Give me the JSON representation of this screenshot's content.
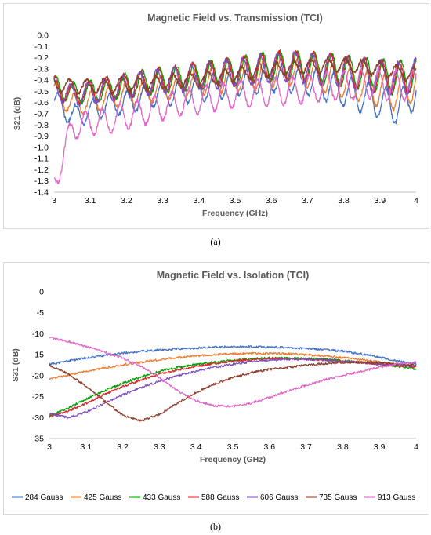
{
  "figure": {
    "label_a": "(a)",
    "label_b": "(b)"
  },
  "colors": {
    "284 Gauss": "#4472c4",
    "425 Gauss": "#ed7d31",
    "433 Gauss": "#00a000",
    "588 Gauss": "#d9262c",
    "606 Gauss": "#7b4fc2",
    "735 Gauss": "#8b3f2c",
    "913 Gauss": "#e066c8"
  },
  "chart_data": [
    {
      "type": "line",
      "title": "Magnetic Field vs. Transmission (TCI)",
      "xlabel": "Frequency (GHz)",
      "ylabel": "S21 (dB)",
      "xlim": [
        3,
        4
      ],
      "ylim": [
        -1.4,
        0
      ],
      "xticks": [
        "3",
        "3.1",
        "3.2",
        "3.3",
        "3.4",
        "3.5",
        "3.6",
        "3.7",
        "3.8",
        "3.9",
        "4"
      ],
      "yticks": [
        "0.0",
        "-0.1",
        "-0.2",
        "-0.3",
        "-0.4",
        "-0.5",
        "-0.6",
        "-0.7",
        "-0.8",
        "-0.9",
        "-1.0",
        "-1.1",
        "-1.2",
        "-1.3",
        "-1.4"
      ],
      "grid": false,
      "legend": "none",
      "x": [
        3.0,
        3.05,
        3.1,
        3.15,
        3.2,
        3.25,
        3.3,
        3.35,
        3.4,
        3.45,
        3.5,
        3.55,
        3.6,
        3.65,
        3.7,
        3.75,
        3.8,
        3.85,
        3.9,
        3.95,
        4.0
      ],
      "series": [
        {
          "key": "284 Gauss",
          "values": [
            -0.58,
            -0.72,
            -0.68,
            -0.62,
            -0.6,
            -0.55,
            -0.52,
            -0.5,
            -0.48,
            -0.45,
            -0.42,
            -0.4,
            -0.38,
            -0.38,
            -0.4,
            -0.45,
            -0.5,
            -0.55,
            -0.6,
            -0.65,
            -0.5
          ]
        },
        {
          "key": "425 Gauss",
          "values": [
            -0.5,
            -0.62,
            -0.6,
            -0.56,
            -0.52,
            -0.5,
            -0.47,
            -0.45,
            -0.42,
            -0.4,
            -0.38,
            -0.36,
            -0.33,
            -0.32,
            -0.33,
            -0.38,
            -0.42,
            -0.45,
            -0.5,
            -0.52,
            -0.42
          ]
        },
        {
          "key": "433 Gauss",
          "values": [
            -0.45,
            -0.52,
            -0.5,
            -0.48,
            -0.45,
            -0.42,
            -0.4,
            -0.38,
            -0.36,
            -0.34,
            -0.32,
            -0.3,
            -0.28,
            -0.27,
            -0.28,
            -0.3,
            -0.32,
            -0.34,
            -0.36,
            -0.38,
            -0.34
          ]
        },
        {
          "key": "588 Gauss",
          "values": [
            -0.46,
            -0.53,
            -0.5,
            -0.48,
            -0.45,
            -0.43,
            -0.4,
            -0.38,
            -0.36,
            -0.34,
            -0.32,
            -0.3,
            -0.28,
            -0.27,
            -0.28,
            -0.3,
            -0.32,
            -0.35,
            -0.37,
            -0.39,
            -0.35
          ]
        },
        {
          "key": "606 Gauss",
          "values": [
            -0.47,
            -0.54,
            -0.51,
            -0.49,
            -0.46,
            -0.43,
            -0.41,
            -0.39,
            -0.37,
            -0.35,
            -0.33,
            -0.31,
            -0.29,
            -0.28,
            -0.29,
            -0.31,
            -0.33,
            -0.35,
            -0.37,
            -0.39,
            -0.36
          ]
        },
        {
          "key": "735 Gauss",
          "values": [
            -0.44,
            -0.46,
            -0.46,
            -0.45,
            -0.44,
            -0.43,
            -0.42,
            -0.4,
            -0.39,
            -0.37,
            -0.35,
            -0.33,
            -0.31,
            -0.29,
            -0.28,
            -0.27,
            -0.27,
            -0.28,
            -0.3,
            -0.33,
            -0.35
          ]
        },
        {
          "key": "913 Gauss",
          "values": [
            -1.33,
            -0.82,
            -0.78,
            -0.76,
            -0.72,
            -0.68,
            -0.64,
            -0.6,
            -0.58,
            -0.55,
            -0.53,
            -0.52,
            -0.5,
            -0.49,
            -0.48,
            -0.46,
            -0.45,
            -0.44,
            -0.44,
            -0.45,
            -0.45
          ]
        }
      ]
    },
    {
      "type": "line",
      "title": "Magnetic Field vs. Isolation (TCI)",
      "xlabel": "Frequency (GHz)",
      "ylabel": "S31 (dB)",
      "xlim": [
        3,
        4
      ],
      "ylim": [
        -35,
        0
      ],
      "xticks": [
        "3",
        "3.1",
        "3.2",
        "3.3",
        "3.4",
        "3.5",
        "3.6",
        "3.7",
        "3.8",
        "3.9",
        "4"
      ],
      "yticks": [
        "0",
        "-5",
        "-10",
        "-15",
        "-20",
        "-25",
        "-30",
        "-35"
      ],
      "grid": false,
      "legend": "bottom",
      "x": [
        3.0,
        3.05,
        3.1,
        3.15,
        3.2,
        3.25,
        3.3,
        3.35,
        3.4,
        3.45,
        3.5,
        3.55,
        3.6,
        3.65,
        3.7,
        3.75,
        3.8,
        3.85,
        3.9,
        3.95,
        4.0
      ],
      "series": [
        {
          "name": "284 Gauss",
          "values": [
            -17.3,
            -16.5,
            -15.8,
            -15.2,
            -14.6,
            -14.2,
            -13.9,
            -13.6,
            -13.4,
            -13.2,
            -13.1,
            -13.1,
            -13.2,
            -13.3,
            -13.5,
            -13.8,
            -14.2,
            -14.8,
            -15.6,
            -16.5,
            -17.3
          ]
        },
        {
          "name": "425 Gauss",
          "values": [
            -20.8,
            -19.9,
            -19.0,
            -18.2,
            -17.4,
            -16.8,
            -16.2,
            -15.7,
            -15.3,
            -15.0,
            -14.8,
            -14.7,
            -14.7,
            -14.8,
            -15.0,
            -15.3,
            -15.7,
            -16.2,
            -16.8,
            -17.3,
            -17.8
          ]
        },
        {
          "name": "433 Gauss",
          "values": [
            -29.6,
            -27.8,
            -25.6,
            -23.6,
            -21.8,
            -20.3,
            -19.0,
            -18.0,
            -17.3,
            -16.8,
            -16.3,
            -16.0,
            -15.8,
            -15.8,
            -15.9,
            -16.1,
            -16.4,
            -16.8,
            -17.2,
            -17.8,
            -18.4
          ]
        },
        {
          "name": "588 Gauss",
          "values": [
            -29.8,
            -28.5,
            -26.6,
            -24.5,
            -22.6,
            -21.0,
            -19.7,
            -18.6,
            -17.8,
            -17.1,
            -16.6,
            -16.2,
            -16.0,
            -16.0,
            -16.1,
            -16.3,
            -16.6,
            -16.9,
            -17.3,
            -17.6,
            -18.0
          ]
        },
        {
          "name": "606 Gauss",
          "values": [
            -29.0,
            -30.0,
            -28.7,
            -26.6,
            -24.6,
            -22.8,
            -21.3,
            -20.0,
            -18.9,
            -18.0,
            -17.3,
            -16.7,
            -16.3,
            -16.1,
            -16.1,
            -16.3,
            -16.6,
            -16.9,
            -17.2,
            -17.4,
            -17.6
          ]
        },
        {
          "name": "735 Gauss",
          "values": [
            -17.5,
            -19.5,
            -22.5,
            -26.0,
            -29.5,
            -30.8,
            -29.2,
            -26.5,
            -24.0,
            -22.0,
            -20.5,
            -19.3,
            -18.5,
            -18.0,
            -17.5,
            -17.1,
            -16.9,
            -16.8,
            -16.9,
            -17.2,
            -17.5
          ]
        },
        {
          "name": "913 Gauss",
          "values": [
            -10.9,
            -11.8,
            -13.0,
            -14.3,
            -15.8,
            -17.8,
            -20.5,
            -23.6,
            -26.0,
            -27.2,
            -27.3,
            -26.6,
            -25.2,
            -23.7,
            -22.3,
            -21.0,
            -19.9,
            -19.0,
            -18.0,
            -17.2,
            -16.8
          ]
        }
      ]
    }
  ]
}
